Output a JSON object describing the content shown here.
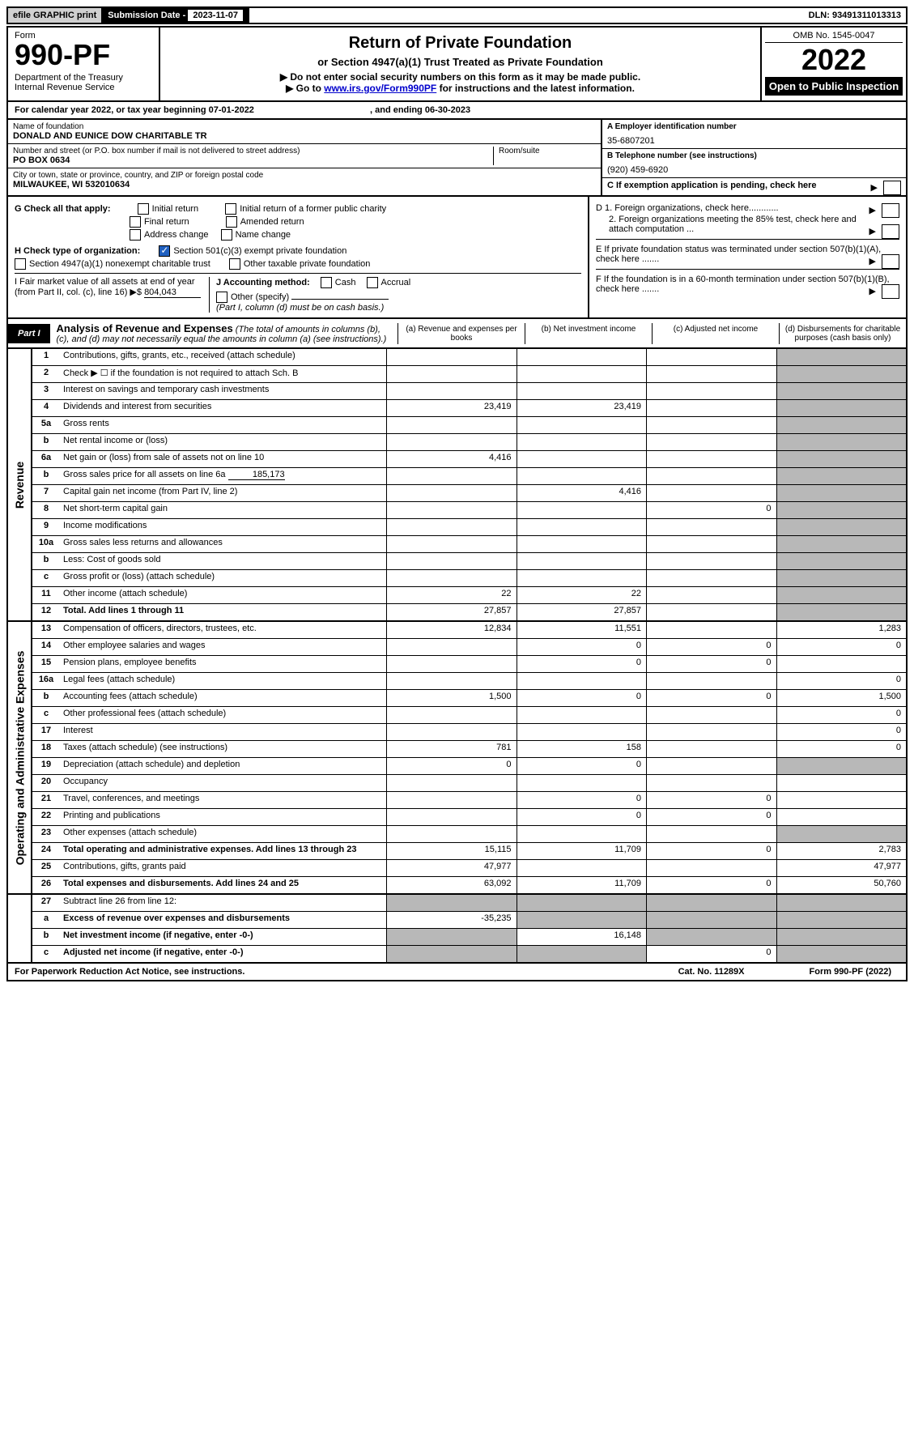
{
  "topbar": {
    "efile": "efile GRAPHIC print",
    "sub_label": "Submission Date - ",
    "sub_date": "2023-11-07",
    "dln": "DLN: 93491311013313"
  },
  "header": {
    "form_label": "Form",
    "form_num": "990-PF",
    "dept": "Department of the Treasury\nInternal Revenue Service",
    "title": "Return of Private Foundation",
    "subtitle1": "or Section 4947(a)(1) Trust Treated as Private Foundation",
    "subtitle2a": "▶ Do not enter social security numbers on this form as it may be made public.",
    "subtitle2b": "▶ Go to ",
    "link": "www.irs.gov/Form990PF",
    "subtitle2c": " for instructions and the latest information.",
    "omb": "OMB No. 1545-0047",
    "year": "2022",
    "open": "Open to Public Inspection"
  },
  "cal_year": {
    "prefix": "For calendar year 2022, or tax year beginning ",
    "begin": "07-01-2022",
    "mid": " , and ending ",
    "end": "06-30-2023"
  },
  "info": {
    "name_label": "Name of foundation",
    "name": "DONALD AND EUNICE DOW CHARITABLE TR",
    "addr_label": "Number and street (or P.O. box number if mail is not delivered to street address)",
    "addr": "PO BOX 0634",
    "room_label": "Room/suite",
    "city_label": "City or town, state or province, country, and ZIP or foreign postal code",
    "city": "MILWAUKEE, WI  532010634",
    "a_label": "A Employer identification number",
    "a_val": "35-6807201",
    "b_label": "B Telephone number (see instructions)",
    "b_val": "(920) 459-6920",
    "c_label": "C If exemption application is pending, check here"
  },
  "checks": {
    "g_label": "G Check all that apply:",
    "g1": "Initial return",
    "g2": "Initial return of a former public charity",
    "g3": "Final return",
    "g4": "Amended return",
    "g5": "Address change",
    "g6": "Name change",
    "h_label": "H Check type of organization:",
    "h1": "Section 501(c)(3) exempt private foundation",
    "h2": "Section 4947(a)(1) nonexempt charitable trust",
    "h3": "Other taxable private foundation",
    "i_label": "I Fair market value of all assets at end of year (from Part II, col. (c), line 16) ▶$ ",
    "i_val": "804,043",
    "j_label": "J Accounting method:",
    "j1": "Cash",
    "j2": "Accrual",
    "j3": "Other (specify)",
    "j_note": "(Part I, column (d) must be on cash basis.)",
    "d1": "D 1. Foreign organizations, check here............",
    "d2": "2. Foreign organizations meeting the 85% test, check here and attach computation ...",
    "e": "E  If private foundation status was terminated under section 507(b)(1)(A), check here .......",
    "f": "F  If the foundation is in a 60-month termination under section 507(b)(1)(B), check here ......."
  },
  "part1": {
    "label": "Part I",
    "title": "Analysis of Revenue and Expenses",
    "sub": " (The total of amounts in columns (b), (c), and (d) may not necessarily equal the amounts in column (a) (see instructions).)",
    "col_a": "(a)  Revenue and expenses per books",
    "col_b": "(b)  Net investment income",
    "col_c": "(c)  Adjusted net income",
    "col_d": "(d)  Disbursements for charitable purposes (cash basis only)"
  },
  "revenue_label": "Revenue",
  "expenses_label": "Operating and Administrative Expenses",
  "rows": {
    "r1": {
      "num": "1",
      "desc": "Contributions, gifts, grants, etc., received (attach schedule)"
    },
    "r2": {
      "num": "2",
      "desc": "Check ▶ ☐ if the foundation is not required to attach Sch. B"
    },
    "r3": {
      "num": "3",
      "desc": "Interest on savings and temporary cash investments"
    },
    "r4": {
      "num": "4",
      "desc": "Dividends and interest from securities",
      "a": "23,419",
      "b": "23,419"
    },
    "r5a": {
      "num": "5a",
      "desc": "Gross rents"
    },
    "r5b": {
      "num": "b",
      "desc": "Net rental income or (loss)"
    },
    "r6a": {
      "num": "6a",
      "desc": "Net gain or (loss) from sale of assets not on line 10",
      "a": "4,416"
    },
    "r6b": {
      "num": "b",
      "desc": "Gross sales price for all assets on line 6a",
      "inline": "185,173"
    },
    "r7": {
      "num": "7",
      "desc": "Capital gain net income (from Part IV, line 2)",
      "b": "4,416"
    },
    "r8": {
      "num": "8",
      "desc": "Net short-term capital gain",
      "c": "0"
    },
    "r9": {
      "num": "9",
      "desc": "Income modifications"
    },
    "r10a": {
      "num": "10a",
      "desc": "Gross sales less returns and allowances"
    },
    "r10b": {
      "num": "b",
      "desc": "Less: Cost of goods sold"
    },
    "r10c": {
      "num": "c",
      "desc": "Gross profit or (loss) (attach schedule)"
    },
    "r11": {
      "num": "11",
      "desc": "Other income (attach schedule)",
      "a": "22",
      "b": "22"
    },
    "r12": {
      "num": "12",
      "desc": "Total. Add lines 1 through 11",
      "a": "27,857",
      "b": "27,857",
      "bold": true
    },
    "r13": {
      "num": "13",
      "desc": "Compensation of officers, directors, trustees, etc.",
      "a": "12,834",
      "b": "11,551",
      "d": "1,283"
    },
    "r14": {
      "num": "14",
      "desc": "Other employee salaries and wages",
      "b": "0",
      "c": "0",
      "d": "0"
    },
    "r15": {
      "num": "15",
      "desc": "Pension plans, employee benefits",
      "b": "0",
      "c": "0"
    },
    "r16a": {
      "num": "16a",
      "desc": "Legal fees (attach schedule)",
      "d": "0"
    },
    "r16b": {
      "num": "b",
      "desc": "Accounting fees (attach schedule)",
      "a": "1,500",
      "b": "0",
      "c": "0",
      "d": "1,500"
    },
    "r16c": {
      "num": "c",
      "desc": "Other professional fees (attach schedule)",
      "d": "0"
    },
    "r17": {
      "num": "17",
      "desc": "Interest",
      "d": "0"
    },
    "r18": {
      "num": "18",
      "desc": "Taxes (attach schedule) (see instructions)",
      "a": "781",
      "b": "158",
      "d": "0"
    },
    "r19": {
      "num": "19",
      "desc": "Depreciation (attach schedule) and depletion",
      "a": "0",
      "b": "0"
    },
    "r20": {
      "num": "20",
      "desc": "Occupancy"
    },
    "r21": {
      "num": "21",
      "desc": "Travel, conferences, and meetings",
      "b": "0",
      "c": "0"
    },
    "r22": {
      "num": "22",
      "desc": "Printing and publications",
      "b": "0",
      "c": "0"
    },
    "r23": {
      "num": "23",
      "desc": "Other expenses (attach schedule)"
    },
    "r24": {
      "num": "24",
      "desc": "Total operating and administrative expenses. Add lines 13 through 23",
      "a": "15,115",
      "b": "11,709",
      "c": "0",
      "d": "2,783",
      "bold": true
    },
    "r25": {
      "num": "25",
      "desc": "Contributions, gifts, grants paid",
      "a": "47,977",
      "d": "47,977"
    },
    "r26": {
      "num": "26",
      "desc": "Total expenses and disbursements. Add lines 24 and 25",
      "a": "63,092",
      "b": "11,709",
      "c": "0",
      "d": "50,760",
      "bold": true
    },
    "r27": {
      "num": "27",
      "desc": "Subtract line 26 from line 12:"
    },
    "r27a": {
      "num": "a",
      "desc": "Excess of revenue over expenses and disbursements",
      "a": "-35,235",
      "bold": true
    },
    "r27b": {
      "num": "b",
      "desc": "Net investment income (if negative, enter -0-)",
      "b": "16,148",
      "bold": true
    },
    "r27c": {
      "num": "c",
      "desc": "Adjusted net income (if negative, enter -0-)",
      "c": "0",
      "bold": true
    }
  },
  "footer": {
    "left": "For Paperwork Reduction Act Notice, see instructions.",
    "mid": "Cat. No. 11289X",
    "right": "Form 990-PF (2022)"
  }
}
